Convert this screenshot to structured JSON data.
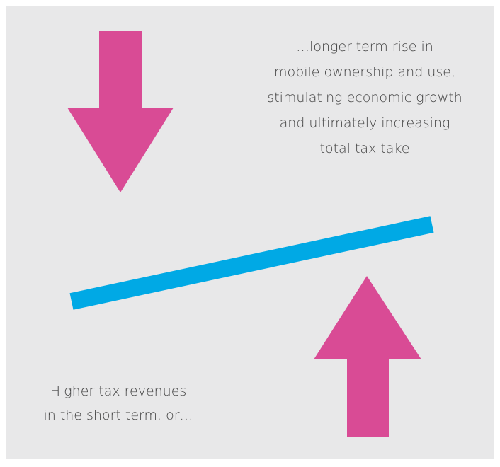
{
  "top_text": [
    "…longer-term rise in",
    "mobile ownership and use,",
    "stimulating economic growth",
    "and ultimately increasing",
    "total tax take"
  ],
  "bottom_text": [
    "Higher tax revenues",
    "in the short term, or…"
  ]
}
